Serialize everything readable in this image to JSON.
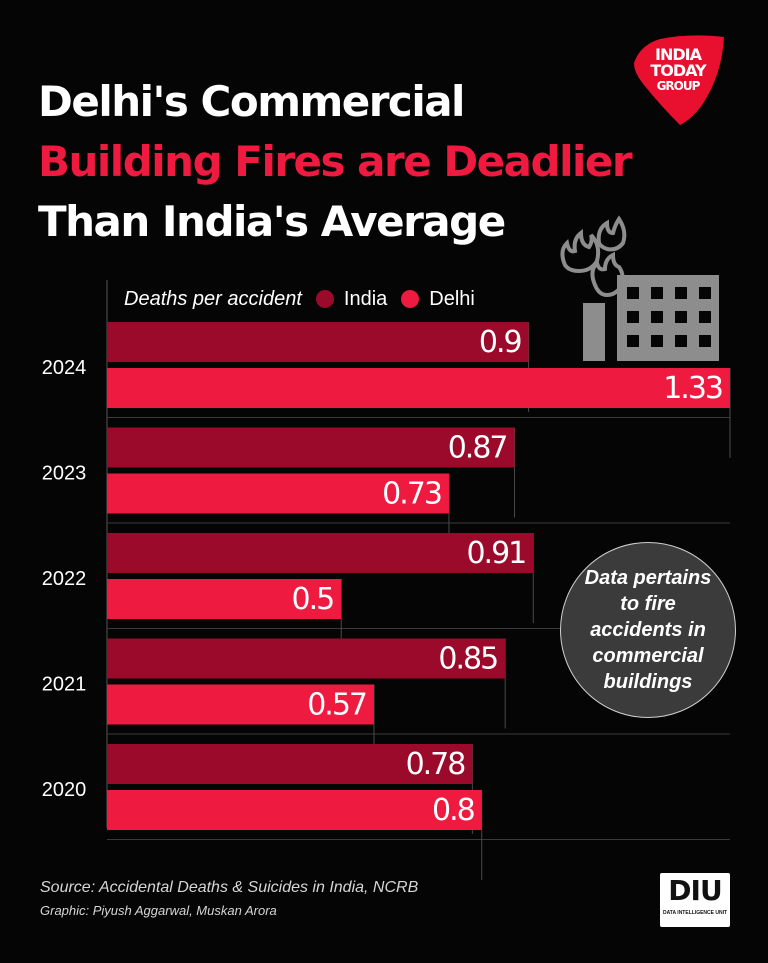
{
  "title": {
    "line1": "Delhi's Commercial",
    "line2": "Building Fires are Deadlier",
    "line3": "Than India's Average"
  },
  "logo": {
    "line1": "INDIA",
    "line2": "TODAY",
    "line3": "GROUP"
  },
  "legend": {
    "label": "Deaths per accident"
  },
  "callout": "Data pertains to fire accidents in commercial buildings",
  "footer": {
    "source": "Source: Accidental Deaths & Suicides in India, NCRB",
    "credit": "Graphic: Piyush Aggarwal, Muskan Arora"
  },
  "badge": {
    "text": "DIU",
    "subtext": "DATA INTELLIGENCE UNIT"
  },
  "icons": {
    "building": "burning-building-icon"
  },
  "colors": {
    "india": "#9b0a2b",
    "delhi": "#ee1a3f",
    "background": "#050505",
    "accent": "#ee1a3f"
  },
  "chart_data": {
    "type": "bar",
    "orientation": "horizontal",
    "categories": [
      "2024",
      "2023",
      "2022",
      "2021",
      "2020"
    ],
    "series": [
      {
        "name": "India",
        "values": [
          0.9,
          0.87,
          0.91,
          0.85,
          0.78
        ]
      },
      {
        "name": "Delhi",
        "values": [
          1.33,
          0.73,
          0.5,
          0.57,
          0.8
        ]
      }
    ],
    "ylabel": "Deaths per accident",
    "xlim": [
      0,
      1.33
    ],
    "legend": "top-left"
  }
}
